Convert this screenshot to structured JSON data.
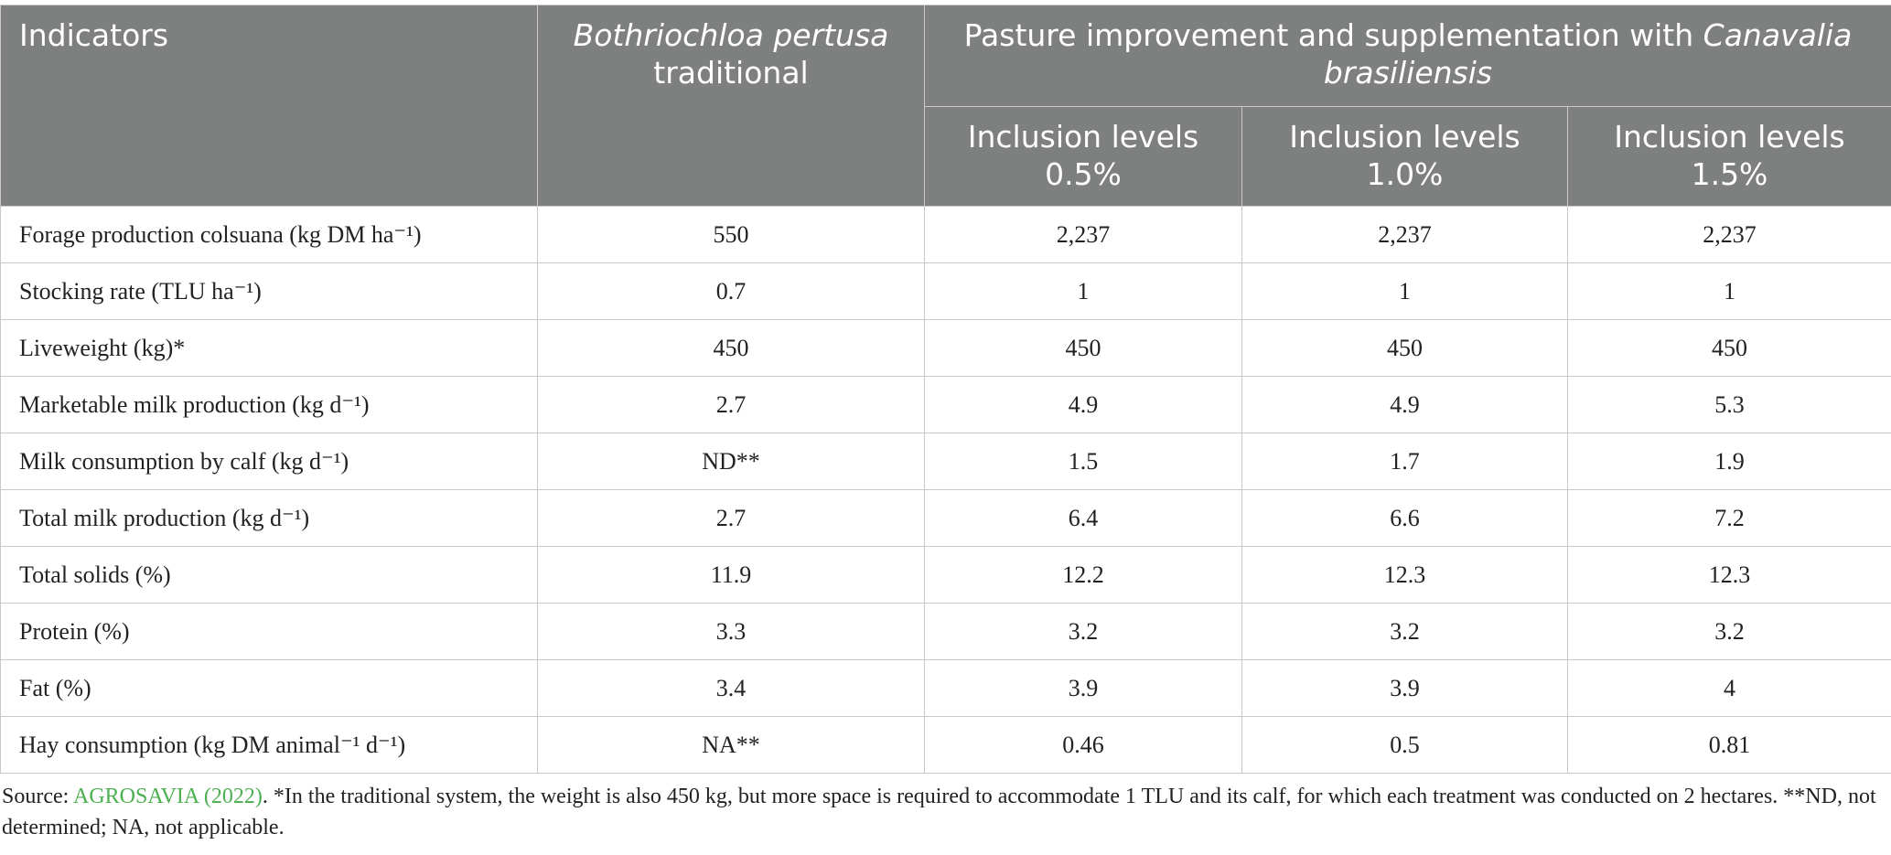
{
  "table": {
    "header": {
      "indicators": "Indicators",
      "traditional": [
        "Bothriochloa pertusa",
        "traditional"
      ],
      "improvement": [
        "Pasture improvement and supplementation with",
        "Canavalia brasiliensis"
      ],
      "levels": [
        [
          "Inclusion levels",
          "0.5%"
        ],
        [
          "Inclusion levels",
          "1.0%"
        ],
        [
          "Inclusion levels",
          "1.5%"
        ]
      ]
    },
    "rows": [
      [
        "Forage production colsuana (kg DM ha⁻¹)",
        "550",
        "2,237",
        "2,237",
        "2,237"
      ],
      [
        "Stocking rate (TLU ha⁻¹)",
        "0.7",
        "1",
        "1",
        "1"
      ],
      [
        "Liveweight (kg)*",
        "450",
        "450",
        "450",
        "450"
      ],
      [
        "Marketable milk production (kg d⁻¹)",
        "2.7",
        "4.9",
        "4.9",
        "5.3"
      ],
      [
        "Milk consumption by calf (kg d⁻¹)",
        "ND**",
        "1.5",
        "1.7",
        "1.9"
      ],
      [
        "Total milk production (kg d⁻¹)",
        "2.7",
        "6.4",
        "6.6",
        "7.2"
      ],
      [
        "Total solids (%)",
        "11.9",
        "12.2",
        "12.3",
        "12.3"
      ],
      [
        "Protein (%)",
        "3.3",
        "3.2",
        "3.2",
        "3.2"
      ],
      [
        "Fat (%)",
        "3.4",
        "3.9",
        "3.9",
        "4"
      ],
      [
        "Hay consumption (kg DM animal⁻¹ d⁻¹)",
        "NA**",
        "0.46",
        "0.5",
        "0.81"
      ]
    ]
  },
  "footnote": {
    "prefix": "Source: ",
    "link": "AGROSAVIA (2022)",
    "text": ". *In the traditional system, the weight is also 450 kg, but more space is required to accommodate 1 TLU and its calf, for which each treatment was conducted on 2 hectares. **ND, not determined; NA, not applicable."
  }
}
